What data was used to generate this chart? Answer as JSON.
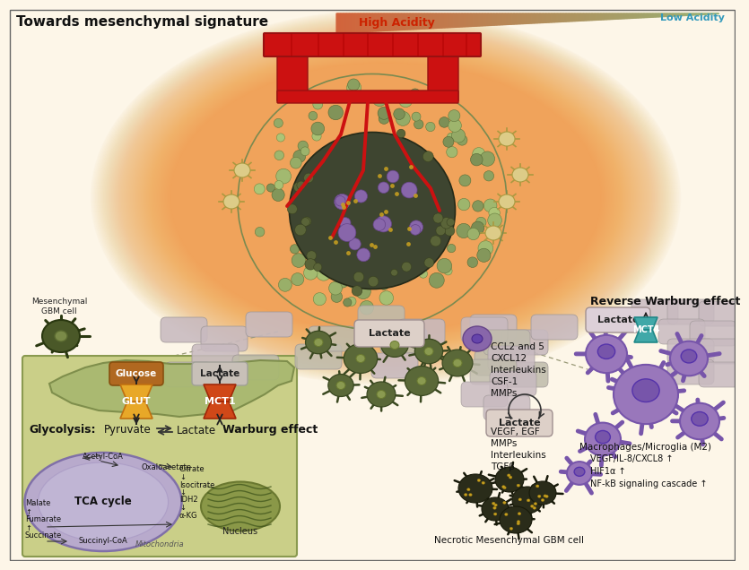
{
  "title": "Towards mesenchymal signature",
  "high_acidity": "High Acidity",
  "low_acidity": "Low Acidity",
  "warburg_effect": "Warburg effect",
  "glycolysis": "Glycolysis:",
  "tca_cycle": "TCA cycle",
  "reverse_warburg": "Reverse Warburg effect",
  "lactate": "Lactate",
  "nucleus": "Nucleus",
  "mitochondria": "Mitochondria",
  "glucose": "Glucose",
  "glut": "GLUT",
  "mct1": "MCT1",
  "mct4": "MCT4",
  "pyruvate": "Pyruvate",
  "mesenchymal_gbm": "Mesenchymal\nGBM cell",
  "necrotic_gbm": "Necrotic Mesenchymal GBM cell",
  "macrophages": "Macrophages/Microglia (M2)",
  "ccl_labels": [
    "CCL2 and 5",
    "CXCL12",
    "Interleukins",
    "CSF-1",
    "MMPs"
  ],
  "vegf_labels": [
    "VEGF, EGF",
    "MMPs",
    "Interleukins",
    "TGFβ"
  ],
  "bottom_labels": [
    "VEGF/IL-8/CXCL8 ↑",
    "HIF1α ↑",
    "NF-kB signaling cascade ↑"
  ],
  "tca_right": [
    "Citrate",
    "↓",
    "Isocitrate",
    "↓",
    "IDH2",
    "↓",
    "α-KG"
  ],
  "tca_left": [
    "Malate",
    "↑",
    "Fumarate",
    "↑",
    "Succinate"
  ],
  "bg_color": "#FDF6E8",
  "panel_color": "#C8CC88",
  "panel_edge": "#8A9A50",
  "tumor_outer": "#B8C878",
  "tumor_inner": "#4A5038",
  "cell_color": "#5A6838",
  "cell_edge": "#3A4820",
  "nuc_color": "#8A9850",
  "macro_color": "#9977BB",
  "macro_edge": "#7755AA",
  "tca_color": "#B0A8CC",
  "tca_edge": "#8878A8",
  "nuc_oval_color": "#8A9A50",
  "vessel_color": "#CC1111",
  "glut_color": "#E8A030",
  "mct1_color": "#D04818",
  "mct4_color": "#40A8A8",
  "glucose_box": "#AA6610",
  "lactate_pill": "#C8B8C8",
  "lactate_pill2": "#BEC8A0",
  "lactate_labeled": "#D4C4D0",
  "pill_tan": "#C8B8A0"
}
